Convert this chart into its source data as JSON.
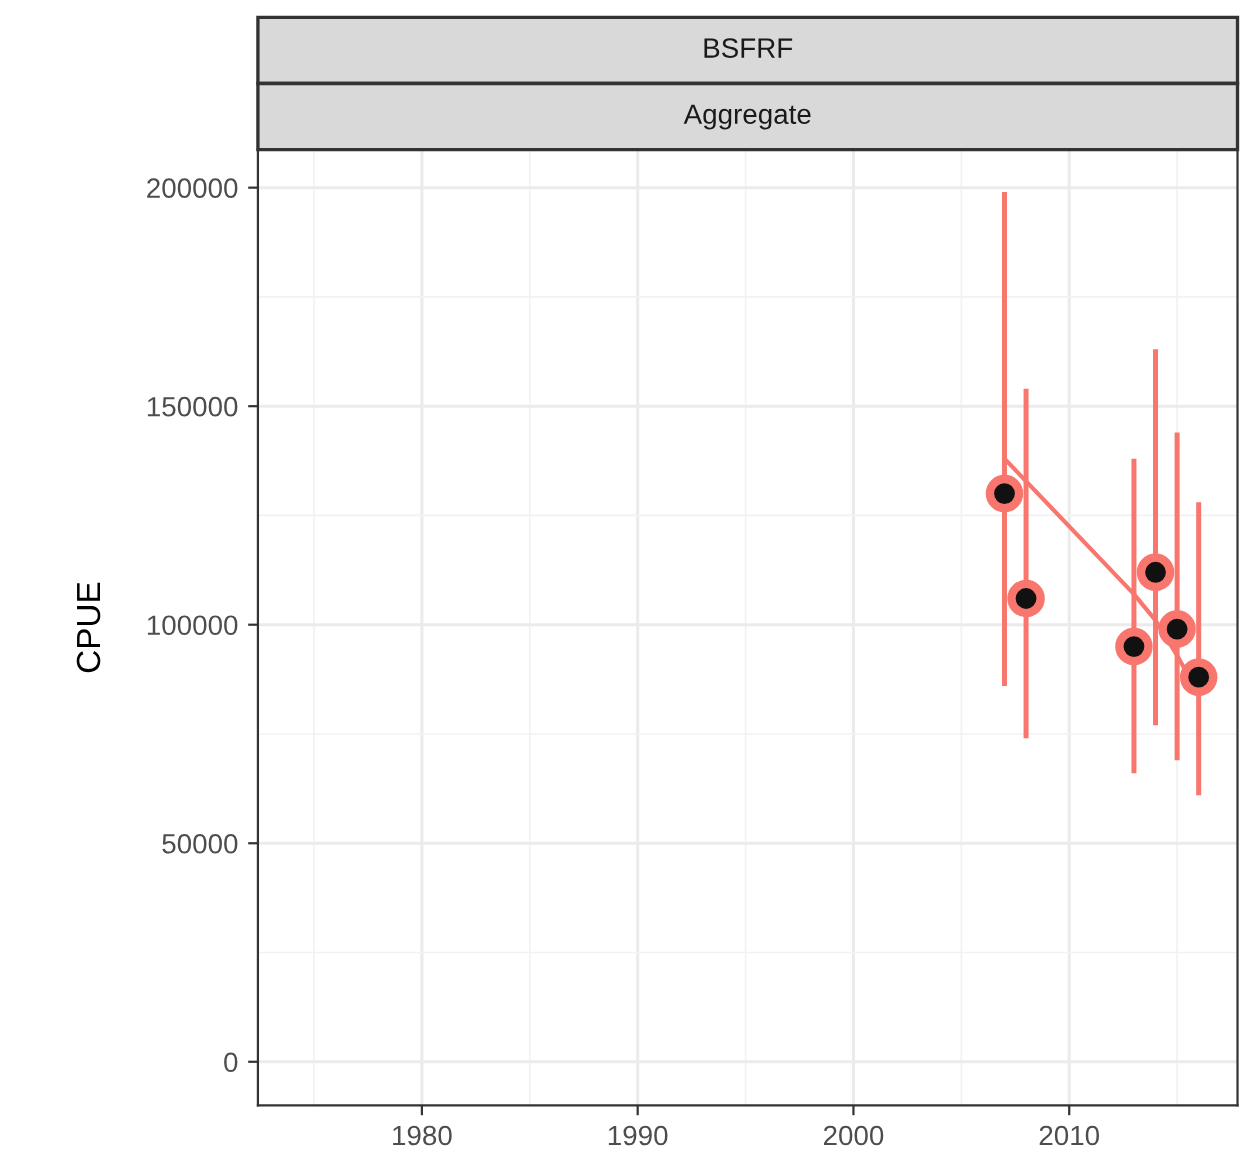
{
  "chart_data": {
    "type": "scatter",
    "title": "BSFRF",
    "subtitle": "Aggregate",
    "ylabel": "CPUE",
    "xlim": [
      1972.4,
      2017.8
    ],
    "xticks": [
      1980,
      1990,
      2000,
      2010
    ],
    "ylim": [
      -10000,
      208700
    ],
    "yticks": [
      0,
      50000,
      100000,
      150000,
      200000
    ],
    "grid": true,
    "legend": false,
    "series": [
      {
        "type": "scatter",
        "color": "#f8766d",
        "marker": "circle",
        "x": [
          2007,
          2008,
          2013,
          2014,
          2015,
          2016
        ],
        "values": [
          130000,
          106000,
          95000,
          112000,
          99000,
          88000
        ],
        "errors": [
          [
            86000,
            199000
          ],
          [
            74000,
            154000
          ],
          [
            66000,
            138000
          ],
          [
            77000,
            163000
          ],
          [
            69000,
            144000
          ],
          [
            61000,
            128000
          ]
        ]
      },
      {
        "type": "line",
        "color": "#f8766d",
        "line_style": "solid",
        "marker": "none",
        "x": [
          2007,
          2013,
          2014,
          2015,
          2016
        ],
        "values": [
          138000,
          107000,
          101000,
          93000,
          84000
        ]
      }
    ]
  }
}
